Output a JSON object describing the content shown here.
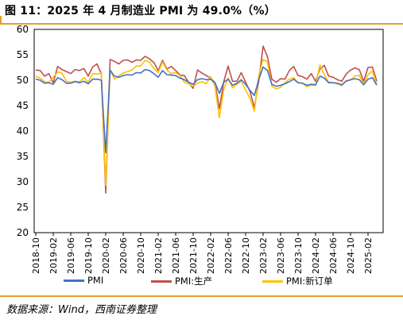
{
  "title": "图 11：2025 年 4 月制造业 PMI 为 49.0%（%）",
  "source": "数据来源：Wind，西南证券整理",
  "colors": {
    "accent": "#e4a02a",
    "pmi": "#4472c4",
    "production": "#c0504d",
    "new_orders": "#ffc000"
  },
  "chart_data": {
    "type": "line",
    "ylim": [
      20,
      60
    ],
    "yticks": [
      20,
      25,
      30,
      35,
      40,
      45,
      50,
      55,
      60
    ],
    "xlabels": [
      "2018-10",
      "2019-02",
      "2019-06",
      "2019-10",
      "2020-02",
      "2020-06",
      "2020-10",
      "2021-02",
      "2021-06",
      "2021-10",
      "2022-02",
      "2022-06",
      "2022-10",
      "2023-02",
      "2023-06",
      "2023-10",
      "2024-02",
      "2024-06",
      "2024-10",
      "2025-02"
    ],
    "x": [
      "2018-10",
      "2018-11",
      "2018-12",
      "2019-01",
      "2019-02",
      "2019-03",
      "2019-04",
      "2019-05",
      "2019-06",
      "2019-07",
      "2019-08",
      "2019-09",
      "2019-10",
      "2019-11",
      "2019-12",
      "2020-01",
      "2020-02",
      "2020-03",
      "2020-04",
      "2020-05",
      "2020-06",
      "2020-07",
      "2020-08",
      "2020-09",
      "2020-10",
      "2020-11",
      "2020-12",
      "2021-01",
      "2021-02",
      "2021-03",
      "2021-04",
      "2021-05",
      "2021-06",
      "2021-07",
      "2021-08",
      "2021-09",
      "2021-10",
      "2021-11",
      "2021-12",
      "2022-01",
      "2022-02",
      "2022-03",
      "2022-04",
      "2022-05",
      "2022-06",
      "2022-07",
      "2022-08",
      "2022-09",
      "2022-10",
      "2022-11",
      "2022-12",
      "2023-01",
      "2023-02",
      "2023-03",
      "2023-04",
      "2023-05",
      "2023-06",
      "2023-07",
      "2023-08",
      "2023-09",
      "2023-10",
      "2023-11",
      "2023-12",
      "2024-01",
      "2024-02",
      "2024-03",
      "2024-04",
      "2024-05",
      "2024-06",
      "2024-07",
      "2024-08",
      "2024-09",
      "2024-10",
      "2024-11",
      "2024-12",
      "2025-01",
      "2025-02",
      "2025-03",
      "2025-04"
    ],
    "series": [
      {
        "name": "PMI",
        "color": "#4472c4",
        "values": [
          50.2,
          50.0,
          49.4,
          49.5,
          49.2,
          50.5,
          50.1,
          49.4,
          49.4,
          49.7,
          49.5,
          49.8,
          49.3,
          50.2,
          50.2,
          50.0,
          35.7,
          52.0,
          50.8,
          50.6,
          50.9,
          51.1,
          51.0,
          51.5,
          51.4,
          52.1,
          51.9,
          51.3,
          50.6,
          51.9,
          51.1,
          51.0,
          50.9,
          50.4,
          50.1,
          49.6,
          49.2,
          50.1,
          50.3,
          50.1,
          50.2,
          49.5,
          47.4,
          49.6,
          50.2,
          49.0,
          49.4,
          50.1,
          49.2,
          48.0,
          47.0,
          50.1,
          52.6,
          51.9,
          49.2,
          48.8,
          49.0,
          49.3,
          49.7,
          50.2,
          49.5,
          49.4,
          49.0,
          49.2,
          49.1,
          50.8,
          50.4,
          49.5,
          49.5,
          49.4,
          49.1,
          49.8,
          50.1,
          50.3,
          50.1,
          49.1,
          50.2,
          50.5,
          49.0
        ]
      },
      {
        "name": "PMI:生产",
        "color": "#c0504d",
        "values": [
          52.0,
          51.9,
          50.8,
          51.3,
          49.5,
          52.7,
          52.1,
          51.7,
          51.3,
          52.1,
          51.9,
          52.3,
          50.8,
          52.6,
          53.2,
          51.3,
          27.8,
          54.1,
          53.7,
          53.2,
          53.9,
          54.0,
          53.5,
          54.0,
          53.9,
          54.7,
          54.2,
          53.5,
          51.9,
          53.9,
          52.2,
          52.7,
          51.9,
          51.0,
          50.9,
          49.5,
          48.4,
          52.0,
          51.4,
          50.9,
          50.4,
          49.5,
          44.4,
          49.7,
          52.8,
          49.8,
          49.8,
          51.5,
          49.6,
          47.8,
          44.6,
          49.8,
          56.7,
          54.6,
          50.2,
          49.6,
          50.3,
          50.2,
          51.9,
          52.7,
          50.9,
          50.7,
          50.2,
          51.3,
          49.8,
          52.2,
          52.9,
          50.8,
          50.6,
          50.1,
          49.8,
          51.2,
          52.0,
          52.4,
          52.1,
          49.8,
          52.5,
          52.6,
          49.8
        ]
      },
      {
        "name": "PMI:新订单",
        "color": "#ffc000",
        "values": [
          50.8,
          50.4,
          49.7,
          49.6,
          50.6,
          51.6,
          51.4,
          49.8,
          49.6,
          49.8,
          49.7,
          50.5,
          49.6,
          51.3,
          51.2,
          51.4,
          29.3,
          52.0,
          50.2,
          50.9,
          51.4,
          51.7,
          52.0,
          52.8,
          52.8,
          53.9,
          53.6,
          52.3,
          51.5,
          53.6,
          52.0,
          51.3,
          51.5,
          50.9,
          49.6,
          49.3,
          48.8,
          49.4,
          49.7,
          49.3,
          50.7,
          48.8,
          42.6,
          48.2,
          50.4,
          48.5,
          49.2,
          49.8,
          48.1,
          46.4,
          43.9,
          50.9,
          54.1,
          53.6,
          48.8,
          48.3,
          48.6,
          49.5,
          50.2,
          50.5,
          49.5,
          49.4,
          48.7,
          49.0,
          49.0,
          53.0,
          51.1,
          49.6,
          49.5,
          49.3,
          48.9,
          49.9,
          50.0,
          50.8,
          51.0,
          49.2,
          51.1,
          51.8,
          49.2
        ]
      }
    ]
  }
}
